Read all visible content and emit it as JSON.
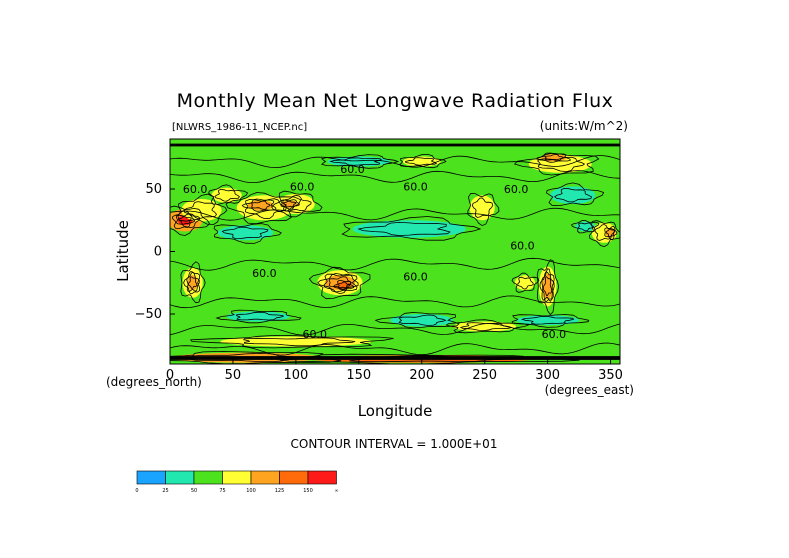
{
  "chart_data": {
    "type": "heatmap",
    "title": "Monthly Mean Net Longwave Radiation Flux",
    "file_label": "[NLWRS_1986-11_NCEP.nc]",
    "units_label": "(units:W/m^2)",
    "xlabel": "Longitude",
    "ylabel": "Latitude",
    "x_unit_label": "(degrees_east)",
    "y_unit_label": "(degrees_north)",
    "xlim": [
      0,
      357.5
    ],
    "ylim": [
      -90,
      90
    ],
    "x_ticks": [
      0,
      50,
      100,
      150,
      200,
      250,
      300,
      350
    ],
    "y_ticks": [
      50,
      0,
      -50
    ],
    "contour_interval_text": "CONTOUR INTERVAL = 1.000E+01",
    "contour_labels": [
      {
        "text": "60.0",
        "lon": 20,
        "lat": 50
      },
      {
        "text": "60.0",
        "lon": 105,
        "lat": 52
      },
      {
        "text": "60.0",
        "lon": 145,
        "lat": 66
      },
      {
        "text": "60.0",
        "lon": 195,
        "lat": 52
      },
      {
        "text": "60.0",
        "lon": 275,
        "lat": 50
      },
      {
        "text": "60.0",
        "lon": 75,
        "lat": -17
      },
      {
        "text": "60.0",
        "lon": 195,
        "lat": -20
      },
      {
        "text": "60.0",
        "lon": 280,
        "lat": 5
      },
      {
        "text": "60.0",
        "lon": 305,
        "lat": -66
      },
      {
        "text": "60.0",
        "lon": 115,
        "lat": -66
      }
    ],
    "colorbar": {
      "boundaries": [
        "0",
        "25",
        "50",
        "75",
        "100",
        "125",
        "150",
        "∞"
      ],
      "colors": [
        "#1aa3ff",
        "#22e8b0",
        "#4ce21e",
        "#ffff33",
        "#ffa420",
        "#ff6a0a",
        "#ff1a1a"
      ]
    }
  }
}
